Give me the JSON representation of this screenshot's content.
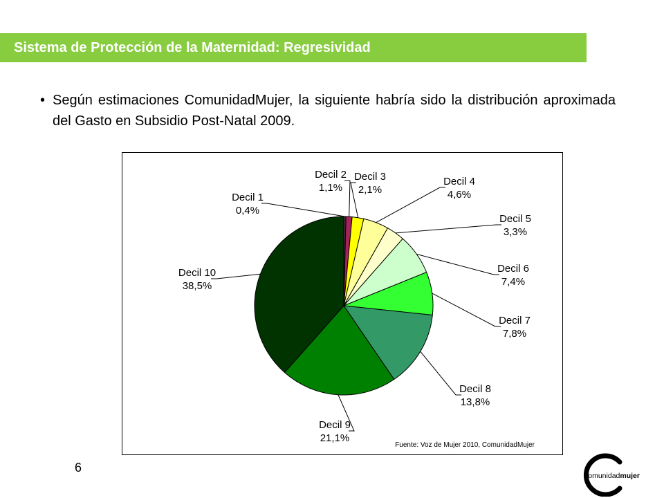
{
  "slide": {
    "title": "Sistema de Protección de la Maternidad: Regresividad",
    "bullet_symbol": "•",
    "bullet_text": "Según estimaciones ComunidadMujer, la siguiente habría sido la distribución aproximada del Gasto en Subsidio Post-Natal 2009.",
    "source": "Fuente: Voz de Mujer 2010, ComunidadMujer",
    "page_number": "6",
    "logo_text": "comunidadmujer",
    "colors": {
      "title_bar": "#88cc3f",
      "title_text": "#ffffff"
    }
  },
  "chart_data": {
    "type": "pie",
    "categories": [
      "Decil 1",
      "Decil 2",
      "Decil 3",
      "Decil 4",
      "Decil 5",
      "Decil 6",
      "Decil 7",
      "Decil 8",
      "Decil 9",
      "Decil 10"
    ],
    "values": [
      0.4,
      1.1,
      2.1,
      4.6,
      3.3,
      7.4,
      7.8,
      13.8,
      21.1,
      38.5
    ],
    "value_labels": [
      "0,4%",
      "1,1%",
      "2,1%",
      "4,6%",
      "3,3%",
      "7,4%",
      "7,8%",
      "13,8%",
      "21,1%",
      "38,5%"
    ],
    "colors": [
      "#4a2a3f",
      "#a3245a",
      "#ffff00",
      "#ffff99",
      "#ffffcc",
      "#ccffcc",
      "#33ff33",
      "#339966",
      "#008000",
      "#003300"
    ],
    "legend": "none"
  }
}
